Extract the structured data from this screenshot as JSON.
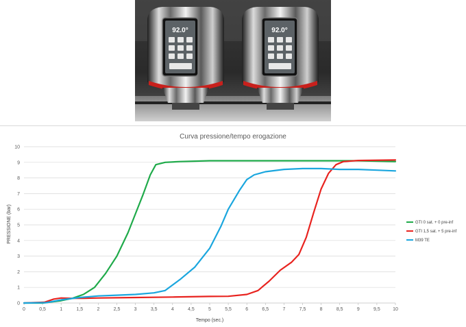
{
  "photo": {
    "left_display": "92.0°",
    "right_display": "92.0°"
  },
  "colors": {
    "gti_0": "#1faa4a",
    "gti_15": "#e8231f",
    "m39": "#1aa6de",
    "grid": "#d9d9d9",
    "axis": "#bfbfbf"
  },
  "chart_data": {
    "type": "line",
    "title": "Curva  pressione/tempo erogazione",
    "xlabel": "Tempo (sec.)",
    "ylabel": "PRESSIONE  (bar)",
    "xlim": [
      0,
      10
    ],
    "ylim": [
      0,
      10
    ],
    "x_ticks": [
      "0",
      "0,5",
      "1",
      "1,5",
      "2",
      "2,5",
      "3",
      "3,5",
      "4",
      "4,5",
      "5",
      "5,5",
      "6",
      "6,5",
      "7",
      "7,5",
      "8",
      "8,5",
      "9",
      "9,5",
      "10"
    ],
    "y_ticks": [
      "0",
      "1",
      "2",
      "3",
      "4",
      "5",
      "6",
      "7",
      "8",
      "9",
      "10"
    ],
    "grid": "horizontal",
    "legend_position": "right",
    "series": [
      {
        "name": "GTI 0 sat. + 0 pre-inf",
        "color": "#1faa4a",
        "points": [
          [
            0,
            0
          ],
          [
            0.5,
            0
          ],
          [
            1,
            0.15
          ],
          [
            1.3,
            0.3
          ],
          [
            1.6,
            0.55
          ],
          [
            1.9,
            1.0
          ],
          [
            2.2,
            1.9
          ],
          [
            2.5,
            3.0
          ],
          [
            2.8,
            4.5
          ],
          [
            3.0,
            5.7
          ],
          [
            3.2,
            6.9
          ],
          [
            3.4,
            8.2
          ],
          [
            3.55,
            8.85
          ],
          [
            3.8,
            9.0
          ],
          [
            4.2,
            9.05
          ],
          [
            5,
            9.1
          ],
          [
            6,
            9.1
          ],
          [
            7,
            9.1
          ],
          [
            8,
            9.1
          ],
          [
            9,
            9.1
          ],
          [
            10,
            9.05
          ]
        ]
      },
      {
        "name": "GTI  1,5 sat. + 5 pre-inf",
        "color": "#e8231f",
        "points": [
          [
            0,
            0
          ],
          [
            0.55,
            0.05
          ],
          [
            0.8,
            0.25
          ],
          [
            1.0,
            0.32
          ],
          [
            1.3,
            0.3
          ],
          [
            1.6,
            0.3
          ],
          [
            2,
            0.32
          ],
          [
            3,
            0.35
          ],
          [
            4,
            0.38
          ],
          [
            5,
            0.42
          ],
          [
            5.5,
            0.43
          ],
          [
            6,
            0.55
          ],
          [
            6.3,
            0.8
          ],
          [
            6.6,
            1.4
          ],
          [
            6.9,
            2.1
          ],
          [
            7.2,
            2.6
          ],
          [
            7.4,
            3.1
          ],
          [
            7.6,
            4.2
          ],
          [
            7.8,
            5.8
          ],
          [
            8.0,
            7.3
          ],
          [
            8.2,
            8.3
          ],
          [
            8.4,
            8.85
          ],
          [
            8.6,
            9.05
          ],
          [
            9,
            9.12
          ],
          [
            10,
            9.15
          ]
        ]
      },
      {
        "name": "M39 TE",
        "color": "#1aa6de",
        "points": [
          [
            0,
            0
          ],
          [
            0.6,
            0.02
          ],
          [
            1.0,
            0.2
          ],
          [
            1.5,
            0.35
          ],
          [
            2,
            0.45
          ],
          [
            2.5,
            0.5
          ],
          [
            3,
            0.55
          ],
          [
            3.5,
            0.65
          ],
          [
            3.8,
            0.8
          ],
          [
            4.2,
            1.5
          ],
          [
            4.6,
            2.3
          ],
          [
            5.0,
            3.5
          ],
          [
            5.3,
            4.9
          ],
          [
            5.5,
            6.0
          ],
          [
            5.8,
            7.2
          ],
          [
            6.0,
            7.9
          ],
          [
            6.2,
            8.2
          ],
          [
            6.5,
            8.4
          ],
          [
            7.0,
            8.55
          ],
          [
            7.5,
            8.6
          ],
          [
            8,
            8.6
          ],
          [
            8.5,
            8.55
          ],
          [
            9,
            8.55
          ],
          [
            9.5,
            8.5
          ],
          [
            10,
            8.45
          ]
        ]
      }
    ]
  }
}
